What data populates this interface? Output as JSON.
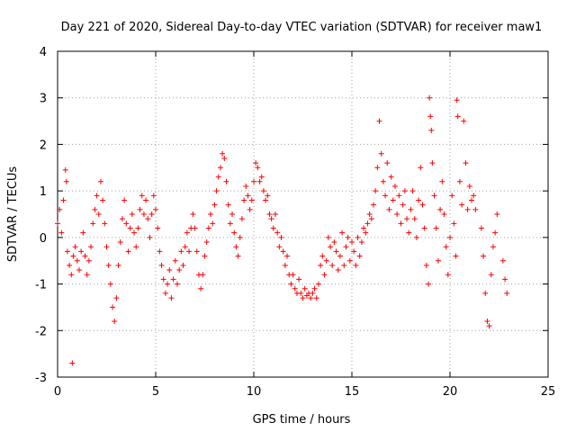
{
  "chart_data": {
    "type": "scatter",
    "title": "Day 221 of 2020, Sidereal Day-to-day VTEC variation (SDTVAR) for receiver maw1",
    "xlabel": "GPS time / hours",
    "ylabel": "SDTVAR / TECUs",
    "xlim": [
      0,
      25
    ],
    "ylim": [
      -3,
      4
    ],
    "xticks": [
      "0",
      "5",
      "10",
      "15",
      "20",
      "25"
    ],
    "yticks": [
      "-3",
      "-2",
      "-1",
      "0",
      "1",
      "2",
      "3",
      "4"
    ],
    "grid": true,
    "marker": "+",
    "color": "#ff0000",
    "series": [
      {
        "name": "SDTVAR",
        "points": [
          [
            0.0,
            0.3
          ],
          [
            0.1,
            0.6
          ],
          [
            0.2,
            0.1
          ],
          [
            0.3,
            0.8
          ],
          [
            0.4,
            1.45
          ],
          [
            0.45,
            1.2
          ],
          [
            0.5,
            -0.3
          ],
          [
            0.6,
            -0.6
          ],
          [
            0.7,
            -0.8
          ],
          [
            0.75,
            -2.7
          ],
          [
            0.8,
            -0.4
          ],
          [
            0.9,
            -0.2
          ],
          [
            1.0,
            -0.5
          ],
          [
            1.1,
            -0.7
          ],
          [
            1.2,
            -0.3
          ],
          [
            1.3,
            0.1
          ],
          [
            1.4,
            -0.4
          ],
          [
            1.5,
            -0.8
          ],
          [
            1.6,
            -0.5
          ],
          [
            1.7,
            -0.2
          ],
          [
            1.8,
            0.3
          ],
          [
            1.9,
            0.6
          ],
          [
            2.0,
            0.9
          ],
          [
            2.1,
            0.5
          ],
          [
            2.2,
            1.2
          ],
          [
            2.3,
            0.8
          ],
          [
            2.4,
            0.3
          ],
          [
            2.5,
            -0.2
          ],
          [
            2.6,
            -0.6
          ],
          [
            2.7,
            -1.0
          ],
          [
            2.8,
            -1.5
          ],
          [
            2.9,
            -1.8
          ],
          [
            3.0,
            -1.3
          ],
          [
            3.1,
            -0.6
          ],
          [
            3.2,
            -0.1
          ],
          [
            3.3,
            0.4
          ],
          [
            3.4,
            0.8
          ],
          [
            3.5,
            0.3
          ],
          [
            3.6,
            -0.3
          ],
          [
            3.7,
            0.2
          ],
          [
            3.8,
            0.5
          ],
          [
            3.9,
            0.1
          ],
          [
            4.0,
            -0.2
          ],
          [
            4.1,
            0.2
          ],
          [
            4.2,
            0.6
          ],
          [
            4.3,
            0.9
          ],
          [
            4.4,
            0.5
          ],
          [
            4.5,
            0.8
          ],
          [
            4.6,
            0.4
          ],
          [
            4.7,
            0.0
          ],
          [
            4.8,
            0.5
          ],
          [
            4.9,
            0.9
          ],
          [
            5.0,
            0.6
          ],
          [
            5.1,
            0.2
          ],
          [
            5.2,
            -0.3
          ],
          [
            5.3,
            -0.6
          ],
          [
            5.4,
            -0.9
          ],
          [
            5.5,
            -1.2
          ],
          [
            5.6,
            -1.0
          ],
          [
            5.7,
            -0.7
          ],
          [
            5.8,
            -1.3
          ],
          [
            5.9,
            -0.9
          ],
          [
            6.0,
            -0.5
          ],
          [
            6.1,
            -1.0
          ],
          [
            6.2,
            -0.7
          ],
          [
            6.3,
            -0.3
          ],
          [
            6.4,
            -0.6
          ],
          [
            6.5,
            -0.2
          ],
          [
            6.6,
            0.1
          ],
          [
            6.7,
            -0.3
          ],
          [
            6.8,
            0.2
          ],
          [
            6.9,
            0.5
          ],
          [
            7.0,
            0.2
          ],
          [
            7.1,
            -0.3
          ],
          [
            7.2,
            -0.8
          ],
          [
            7.3,
            -1.1
          ],
          [
            7.4,
            -0.8
          ],
          [
            7.5,
            -0.4
          ],
          [
            7.6,
            -0.1
          ],
          [
            7.7,
            0.2
          ],
          [
            7.8,
            0.5
          ],
          [
            7.9,
            0.3
          ],
          [
            8.0,
            0.7
          ],
          [
            8.1,
            1.0
          ],
          [
            8.2,
            1.3
          ],
          [
            8.3,
            1.5
          ],
          [
            8.4,
            1.8
          ],
          [
            8.5,
            1.7
          ],
          [
            8.6,
            1.2
          ],
          [
            8.7,
            0.7
          ],
          [
            8.8,
            0.3
          ],
          [
            8.9,
            0.5
          ],
          [
            9.0,
            0.1
          ],
          [
            9.1,
            -0.2
          ],
          [
            9.2,
            -0.4
          ],
          [
            9.3,
            0.0
          ],
          [
            9.4,
            0.4
          ],
          [
            9.5,
            0.8
          ],
          [
            9.6,
            1.1
          ],
          [
            9.7,
            0.9
          ],
          [
            9.8,
            0.6
          ],
          [
            9.9,
            0.8
          ],
          [
            10.0,
            1.2
          ],
          [
            10.1,
            1.6
          ],
          [
            10.2,
            1.5
          ],
          [
            10.3,
            1.2
          ],
          [
            10.4,
            1.3
          ],
          [
            10.5,
            1.0
          ],
          [
            10.6,
            0.8
          ],
          [
            10.7,
            0.9
          ],
          [
            10.8,
            0.5
          ],
          [
            10.9,
            0.4
          ],
          [
            11.0,
            0.2
          ],
          [
            11.1,
            0.5
          ],
          [
            11.2,
            0.1
          ],
          [
            11.3,
            -0.2
          ],
          [
            11.4,
            0.0
          ],
          [
            11.5,
            -0.3
          ],
          [
            11.6,
            -0.6
          ],
          [
            11.7,
            -0.4
          ],
          [
            11.8,
            -0.8
          ],
          [
            11.9,
            -1.0
          ],
          [
            12.0,
            -0.8
          ],
          [
            12.1,
            -1.1
          ],
          [
            12.2,
            -1.2
          ],
          [
            12.3,
            -0.9
          ],
          [
            12.4,
            -1.2
          ],
          [
            12.5,
            -1.3
          ],
          [
            12.6,
            -1.1
          ],
          [
            12.7,
            -1.25
          ],
          [
            12.8,
            -1.2
          ],
          [
            12.9,
            -1.3
          ],
          [
            13.0,
            -1.2
          ],
          [
            13.1,
            -1.1
          ],
          [
            13.2,
            -1.3
          ],
          [
            13.3,
            -1.0
          ],
          [
            13.4,
            -0.6
          ],
          [
            13.5,
            -0.4
          ],
          [
            13.6,
            -0.8
          ],
          [
            13.7,
            -0.5
          ],
          [
            13.8,
            0.0
          ],
          [
            13.9,
            -0.2
          ],
          [
            14.0,
            -0.6
          ],
          [
            14.1,
            -0.1
          ],
          [
            14.2,
            -0.3
          ],
          [
            14.3,
            -0.7
          ],
          [
            14.4,
            -0.4
          ],
          [
            14.5,
            0.1
          ],
          [
            14.6,
            -0.6
          ],
          [
            14.7,
            -0.2
          ],
          [
            14.8,
            0.0
          ],
          [
            14.9,
            -0.5
          ],
          [
            15.0,
            -0.1
          ],
          [
            15.1,
            -0.3
          ],
          [
            15.2,
            -0.6
          ],
          [
            15.3,
            0.0
          ],
          [
            15.4,
            -0.4
          ],
          [
            15.5,
            -0.1
          ],
          [
            15.6,
            0.2
          ],
          [
            15.7,
            0.1
          ],
          [
            15.8,
            0.3
          ],
          [
            15.9,
            0.5
          ],
          [
            16.0,
            0.4
          ],
          [
            16.1,
            0.7
          ],
          [
            16.2,
            1.0
          ],
          [
            16.3,
            1.5
          ],
          [
            16.4,
            2.5
          ],
          [
            16.5,
            1.8
          ],
          [
            16.6,
            1.2
          ],
          [
            16.7,
            0.9
          ],
          [
            16.8,
            1.6
          ],
          [
            16.9,
            0.6
          ],
          [
            17.0,
            1.3
          ],
          [
            17.1,
            0.8
          ],
          [
            17.2,
            1.1
          ],
          [
            17.3,
            0.5
          ],
          [
            17.4,
            0.9
          ],
          [
            17.5,
            0.3
          ],
          [
            17.6,
            0.7
          ],
          [
            17.7,
            1.0
          ],
          [
            17.8,
            0.4
          ],
          [
            17.9,
            0.1
          ],
          [
            18.0,
            0.6
          ],
          [
            18.1,
            1.0
          ],
          [
            18.2,
            0.4
          ],
          [
            18.3,
            0.0
          ],
          [
            18.4,
            0.8
          ],
          [
            18.5,
            1.5
          ],
          [
            18.6,
            0.7
          ],
          [
            18.7,
            0.2
          ],
          [
            18.8,
            -0.6
          ],
          [
            18.9,
            -1.0
          ],
          [
            18.95,
            3.0
          ],
          [
            19.0,
            2.6
          ],
          [
            19.05,
            2.3
          ],
          [
            19.1,
            1.6
          ],
          [
            19.2,
            0.9
          ],
          [
            19.3,
            0.2
          ],
          [
            19.4,
            -0.5
          ],
          [
            19.5,
            0.6
          ],
          [
            19.6,
            1.2
          ],
          [
            19.7,
            0.5
          ],
          [
            19.8,
            -0.2
          ],
          [
            19.9,
            -0.8
          ],
          [
            20.0,
            0.0
          ],
          [
            20.1,
            0.9
          ],
          [
            20.2,
            0.3
          ],
          [
            20.3,
            -0.4
          ],
          [
            20.35,
            2.95
          ],
          [
            20.4,
            2.6
          ],
          [
            20.5,
            1.2
          ],
          [
            20.6,
            0.7
          ],
          [
            20.7,
            2.5
          ],
          [
            20.8,
            1.6
          ],
          [
            20.9,
            0.6
          ],
          [
            21.0,
            1.1
          ],
          [
            21.1,
            0.8
          ],
          [
            21.2,
            0.9
          ],
          [
            21.3,
            0.6
          ],
          [
            21.6,
            0.2
          ],
          [
            21.7,
            -0.4
          ],
          [
            21.8,
            -1.2
          ],
          [
            21.9,
            -1.8
          ],
          [
            22.0,
            -1.9
          ],
          [
            22.1,
            -0.8
          ],
          [
            22.2,
            -0.2
          ],
          [
            22.3,
            0.1
          ],
          [
            22.4,
            0.5
          ],
          [
            22.7,
            -0.5
          ],
          [
            22.8,
            -0.9
          ],
          [
            22.9,
            -1.2
          ]
        ]
      }
    ]
  }
}
